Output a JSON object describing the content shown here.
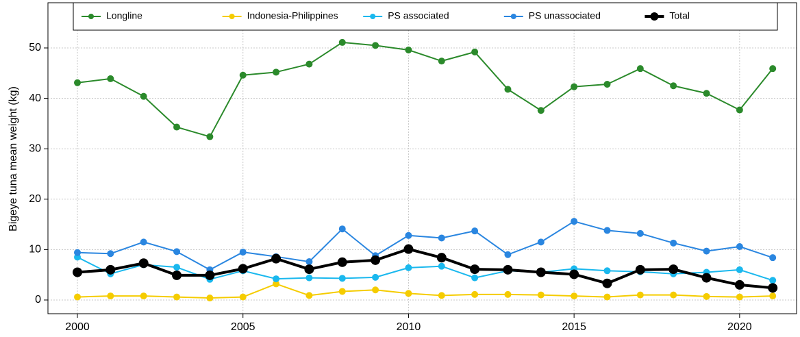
{
  "chart_data": {
    "type": "line",
    "y_label": "Bigeye tuna mean weight (kg)",
    "x": [
      2000,
      2001,
      2002,
      2003,
      2004,
      2005,
      2006,
      2007,
      2008,
      2009,
      2010,
      2011,
      2012,
      2013,
      2014,
      2015,
      2016,
      2017,
      2018,
      2019,
      2020,
      2021
    ],
    "series": [
      {
        "name": "Longline",
        "color": "#2b8a2b",
        "linewidth": 2,
        "values": [
          43.1,
          43.9,
          40.4,
          34.3,
          32.4,
          44.6,
          45.2,
          46.8,
          51.1,
          50.5,
          49.6,
          47.4,
          49.2,
          41.8,
          37.6,
          42.3,
          42.8,
          45.9,
          42.5,
          41.0,
          37.7,
          45.9
        ]
      },
      {
        "name": "Indonesia-Philippines",
        "color": "#f5cc00",
        "linewidth": 2,
        "values": [
          0.6,
          0.8,
          0.8,
          0.6,
          0.4,
          0.6,
          3.2,
          0.9,
          1.7,
          2.0,
          1.3,
          0.9,
          1.1,
          1.1,
          1.0,
          0.8,
          0.6,
          1.0,
          1.0,
          0.7,
          0.6,
          0.8
        ]
      },
      {
        "name": "PS associated",
        "color": "#1ab8ee",
        "linewidth": 2,
        "values": [
          8.5,
          5.2,
          7.0,
          6.5,
          4.1,
          5.8,
          4.2,
          4.4,
          4.3,
          4.5,
          6.4,
          6.7,
          4.4,
          5.8,
          5.5,
          6.2,
          5.8,
          5.6,
          5.2,
          5.5,
          6.0,
          3.9
        ]
      },
      {
        "name": "PS unassociated",
        "color": "#2a86e0",
        "linewidth": 2,
        "values": [
          9.4,
          9.2,
          11.5,
          9.6,
          6.0,
          9.5,
          8.6,
          7.6,
          14.1,
          8.8,
          12.8,
          12.3,
          13.7,
          9.0,
          11.5,
          15.6,
          13.8,
          13.2,
          11.3,
          9.7,
          10.6,
          8.4
        ]
      },
      {
        "name": "Total",
        "color": "#000000",
        "linewidth": 4,
        "values": [
          5.5,
          6.0,
          7.3,
          4.9,
          4.9,
          6.2,
          8.2,
          6.1,
          7.5,
          7.9,
          10.1,
          8.4,
          6.1,
          6.0,
          5.5,
          5.1,
          3.3,
          6.0,
          6.1,
          4.4,
          3.0,
          2.4
        ]
      }
    ],
    "xlim": [
      1999.11,
      2021.72
    ],
    "xticks": [
      2000,
      2005,
      2010,
      2015,
      2020
    ],
    "ylim": [
      -2.72,
      58.97
    ],
    "yticks": [
      0,
      10,
      20,
      30,
      40,
      50
    ],
    "grid": true,
    "legend": "top"
  }
}
